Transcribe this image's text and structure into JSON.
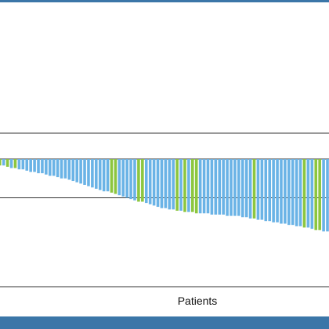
{
  "colors": {
    "band": "#3b76a8",
    "series_a": "#6ab3e6",
    "series_b": "#8cc63f",
    "axis": "#333333"
  },
  "chart_data": {
    "type": "bar",
    "xlabel": "Patients",
    "ylabel": "",
    "title": "",
    "ylim": [
      -100,
      100
    ],
    "reference_lines": [
      20,
      0,
      -30,
      -100
    ],
    "grid": false,
    "legend": "none",
    "series_colors": [
      "#6ab3e6",
      "#8cc63f"
    ],
    "values": [
      -5,
      -5,
      -6,
      -7,
      -7,
      -8,
      -8,
      -9,
      -10,
      -10,
      -11,
      -11,
      -12,
      -13,
      -13,
      -14,
      -15,
      -15,
      -16,
      -17,
      -18,
      -19,
      -20,
      -21,
      -22,
      -23,
      -24,
      -25,
      -25,
      -26,
      -27,
      -28,
      -29,
      -30,
      -31,
      -32,
      -33,
      -33,
      -34,
      -35,
      -36,
      -37,
      -38,
      -38,
      -39,
      -39,
      -40,
      -40,
      -41,
      -41,
      -41,
      -42,
      -42,
      -42,
      -42,
      -43,
      -43,
      -43,
      -43,
      -44,
      -44,
      -44,
      -44,
      -45,
      -45,
      -46,
      -46,
      -47,
      -47,
      -48,
      -48,
      -49,
      -49,
      -50,
      -50,
      -51,
      -51,
      -52,
      -52,
      -53,
      -53,
      -54,
      -55,
      -55,
      -56,
      -56,
      -57,
      -58,
      -58,
      -59
    ],
    "groups": [
      "b",
      "a",
      "b",
      "a",
      "b",
      "a",
      "a",
      "a",
      "a",
      "a",
      "a",
      "a",
      "a",
      "a",
      "a",
      "a",
      "a",
      "a",
      "a",
      "a",
      "a",
      "a",
      "a",
      "a",
      "a",
      "a",
      "a",
      "a",
      "a",
      "b",
      "b",
      "a",
      "a",
      "a",
      "a",
      "a",
      "b",
      "b",
      "a",
      "a",
      "a",
      "a",
      "a",
      "a",
      "a",
      "a",
      "b",
      "a",
      "b",
      "a",
      "b",
      "b",
      "a",
      "a",
      "a",
      "a",
      "a",
      "a",
      "a",
      "a",
      "a",
      "a",
      "a",
      "a",
      "a",
      "a",
      "b",
      "a",
      "a",
      "a",
      "a",
      "a",
      "a",
      "a",
      "a",
      "a",
      "a",
      "a",
      "a",
      "b",
      "a",
      "a",
      "b",
      "b",
      "a",
      "a",
      "a",
      "a",
      "a",
      "a"
    ]
  }
}
